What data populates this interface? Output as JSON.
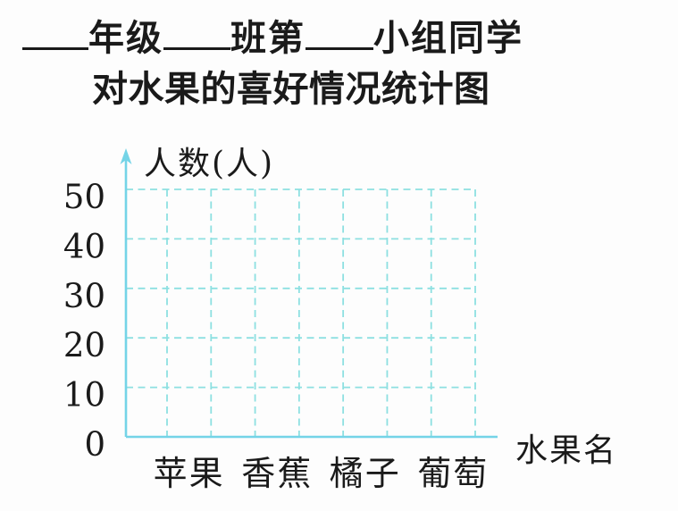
{
  "colors": {
    "grid": "#8de0e1",
    "axis": "#74d4e7",
    "text": "#1a1a1a"
  },
  "title": {
    "line1_text1": "年级",
    "line1_text2": "班第",
    "line1_text3": "小组同学",
    "line2": "对水果的喜好情况统计图"
  },
  "chart_data": {
    "type": "bar",
    "title": "____年级____班第____小组同学 对水果的喜好情况统计图",
    "categories": [
      "苹果",
      "香蕉",
      "橘子",
      "葡萄"
    ],
    "series": [],
    "xlabel": "水果名",
    "ylabel": "人数(人)",
    "yticks": [
      0,
      10,
      20,
      30,
      40,
      50
    ],
    "ylim": [
      0,
      55
    ],
    "grid": "dashed",
    "legend": "none",
    "note_visible_state": "blank grid template, no bars plotted"
  }
}
